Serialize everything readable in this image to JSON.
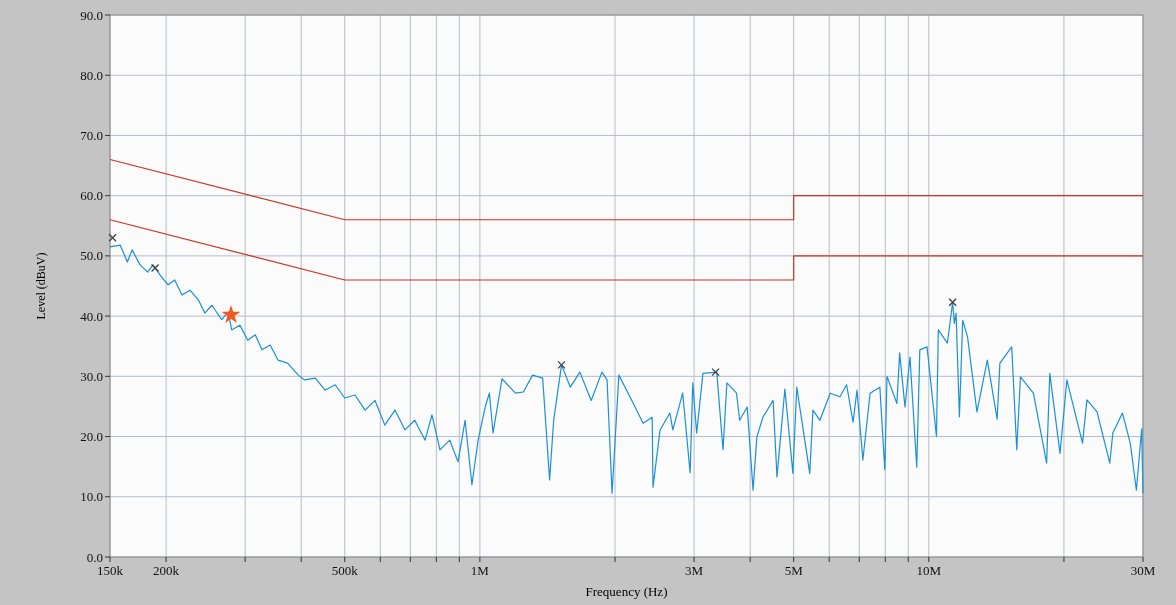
{
  "chart_data": {
    "type": "line",
    "xlabel": "Frequency (Hz)",
    "ylabel": "Level (dBuV)",
    "log": "x",
    "grid": true,
    "xlim": [
      150000,
      30000000
    ],
    "ylim": [
      0,
      90
    ],
    "xticks": [
      {
        "value": 150000,
        "label": "150k"
      },
      {
        "value": 200000,
        "label": "200k"
      },
      {
        "value": 300000,
        "label": null
      },
      {
        "value": 400000,
        "label": null
      },
      {
        "value": 500000,
        "label": "500k"
      },
      {
        "value": 600000,
        "label": null
      },
      {
        "value": 700000,
        "label": null
      },
      {
        "value": 800000,
        "label": null
      },
      {
        "value": 900000,
        "label": null
      },
      {
        "value": 1000000,
        "label": "1M"
      },
      {
        "value": 2000000,
        "label": null
      },
      {
        "value": 3000000,
        "label": "3M"
      },
      {
        "value": 4000000,
        "label": null
      },
      {
        "value": 5000000,
        "label": "5M"
      },
      {
        "value": 6000000,
        "label": null
      },
      {
        "value": 7000000,
        "label": null
      },
      {
        "value": 8000000,
        "label": null
      },
      {
        "value": 9000000,
        "label": null
      },
      {
        "value": 10000000,
        "label": "10M"
      },
      {
        "value": 20000000,
        "label": null
      },
      {
        "value": 30000000,
        "label": "30M"
      }
    ],
    "yticks": [
      {
        "value": 0,
        "label": "0.0"
      },
      {
        "value": 10,
        "label": "10.0"
      },
      {
        "value": 20,
        "label": "20.0"
      },
      {
        "value": 30,
        "label": "30.0"
      },
      {
        "value": 40,
        "label": "40.0"
      },
      {
        "value": 50,
        "label": "50.0"
      },
      {
        "value": 60,
        "label": "60.0"
      },
      {
        "value": 70,
        "label": "70.0"
      },
      {
        "value": 80,
        "label": "80.0"
      },
      {
        "value": 90,
        "label": "90.0"
      }
    ],
    "series": [
      {
        "color": "#1a90d8",
        "marker": "none",
        "x": [
          150000,
          158000,
          164000,
          168000,
          175000,
          182000,
          187000,
          194000,
          202000,
          209000,
          217000,
          226000,
          236000,
          244000,
          253000,
          266000,
          275000,
          280000,
          292000,
          304000,
          316000,
          327000,
          341000,
          355000,
          373000,
          394000,
          407000,
          430000,
          452000,
          476000,
          500000,
          527000,
          555000,
          584000,
          614000,
          647000,
          681000,
          716000,
          755000,
          782000,
          815000,
          857000,
          894000,
          927000,
          960000,
          991000,
          1030000,
          1050000,
          1070000,
          1120000,
          1200000,
          1250000,
          1310000,
          1380000,
          1430000,
          1460000,
          1520000,
          1590000,
          1670000,
          1770000,
          1870000,
          1920000,
          1970000,
          2040000,
          2190000,
          2310000,
          2420000,
          2430000,
          2520000,
          2650000,
          2690000,
          2830000,
          2940000,
          2980000,
          3040000,
          3140000,
          3370000,
          3480000,
          3550000,
          3730000,
          3790000,
          3940000,
          4060000,
          4140000,
          4270000,
          4500000,
          4590000,
          4780000,
          4980000,
          5080000,
          5430000,
          5520000,
          5720000,
          6030000,
          6340000,
          6560000,
          6780000,
          6920000,
          7130000,
          7400000,
          7780000,
          7980000,
          8070000,
          8490000,
          8610000,
          8850000,
          9080000,
          9400000,
          9550000,
          9910000,
          10400000,
          10500000,
          11000000,
          11300000,
          11400000,
          11500000,
          11700000,
          11900000,
          12200000,
          12800000,
          13500000,
          14200000,
          14400000,
          15300000,
          15700000,
          16000000,
          17100000,
          18300000,
          18600000,
          19600000,
          20300000,
          22000000,
          22500000,
          23700000,
          25300000,
          25700000,
          27000000,
          28100000,
          29000000,
          29800000,
          30000000
        ],
        "values": [
          51.5,
          51.8,
          49,
          51,
          48.5,
          47.3,
          48.5,
          46.8,
          45.2,
          46,
          43.5,
          44.3,
          42.7,
          40.5,
          41.8,
          39.4,
          40.7,
          37.7,
          38.5,
          36,
          36.9,
          34.4,
          35.2,
          32.7,
          32.2,
          30.2,
          29.4,
          29.7,
          27.7,
          28.6,
          26.4,
          26.9,
          24.4,
          26,
          21.9,
          24.4,
          21.1,
          22.7,
          19.4,
          23.6,
          17.8,
          19.4,
          15.8,
          22.7,
          12,
          19.4,
          25.2,
          27.2,
          20.6,
          29.6,
          27.2,
          27.4,
          30.2,
          29.7,
          12.8,
          22.7,
          31.9,
          28.2,
          30.7,
          26,
          30.7,
          29.4,
          10.6,
          30.2,
          25.7,
          22.2,
          23.2,
          11.6,
          21.1,
          23.9,
          21.1,
          27.2,
          14,
          28.9,
          20.6,
          30.5,
          30.7,
          17.8,
          28.9,
          27.2,
          22.7,
          24.9,
          11.1,
          19.9,
          23.2,
          26,
          13.3,
          27.9,
          13.9,
          28.2,
          13.9,
          24.4,
          22.7,
          27.2,
          26.6,
          28.6,
          22.4,
          27.7,
          16.1,
          27.2,
          28.2,
          14.5,
          30,
          25.5,
          33.9,
          24.9,
          33.2,
          14.9,
          34.4,
          34.9,
          20,
          37.7,
          35.5,
          42.3,
          38.8,
          40.5,
          23.3,
          39.3,
          36.5,
          24.1,
          32.7,
          22.9,
          32.2,
          34.9,
          17.8,
          29.9,
          27.2,
          15.6,
          30.5,
          17.2,
          29.4,
          18.9,
          26.1,
          24.1,
          15.6,
          20.6,
          23.9,
          18.9,
          11.1,
          21.3,
          10.6
        ]
      },
      {
        "color": "#d03020",
        "marker": "none",
        "x": [
          150000,
          500000,
          5000000,
          5000000,
          30000000
        ],
        "values": [
          66,
          56,
          56,
          60,
          60
        ]
      },
      {
        "color": "#d03020",
        "marker": "none",
        "x": [
          150000,
          500000,
          5000000,
          5000000,
          30000000
        ],
        "values": [
          56,
          46,
          46,
          50,
          50
        ]
      },
      {
        "type": "scatter",
        "color": "#404040",
        "marker": "cross",
        "x": [
          152000,
          189000,
          1520000,
          3350000,
          11300000
        ],
        "values": [
          53,
          48,
          31.9,
          30.7,
          42.3
        ]
      },
      {
        "type": "scatter",
        "color": "#f05a1e",
        "marker": "star",
        "x": [
          279000
        ],
        "values": [
          40.2
        ]
      }
    ]
  }
}
